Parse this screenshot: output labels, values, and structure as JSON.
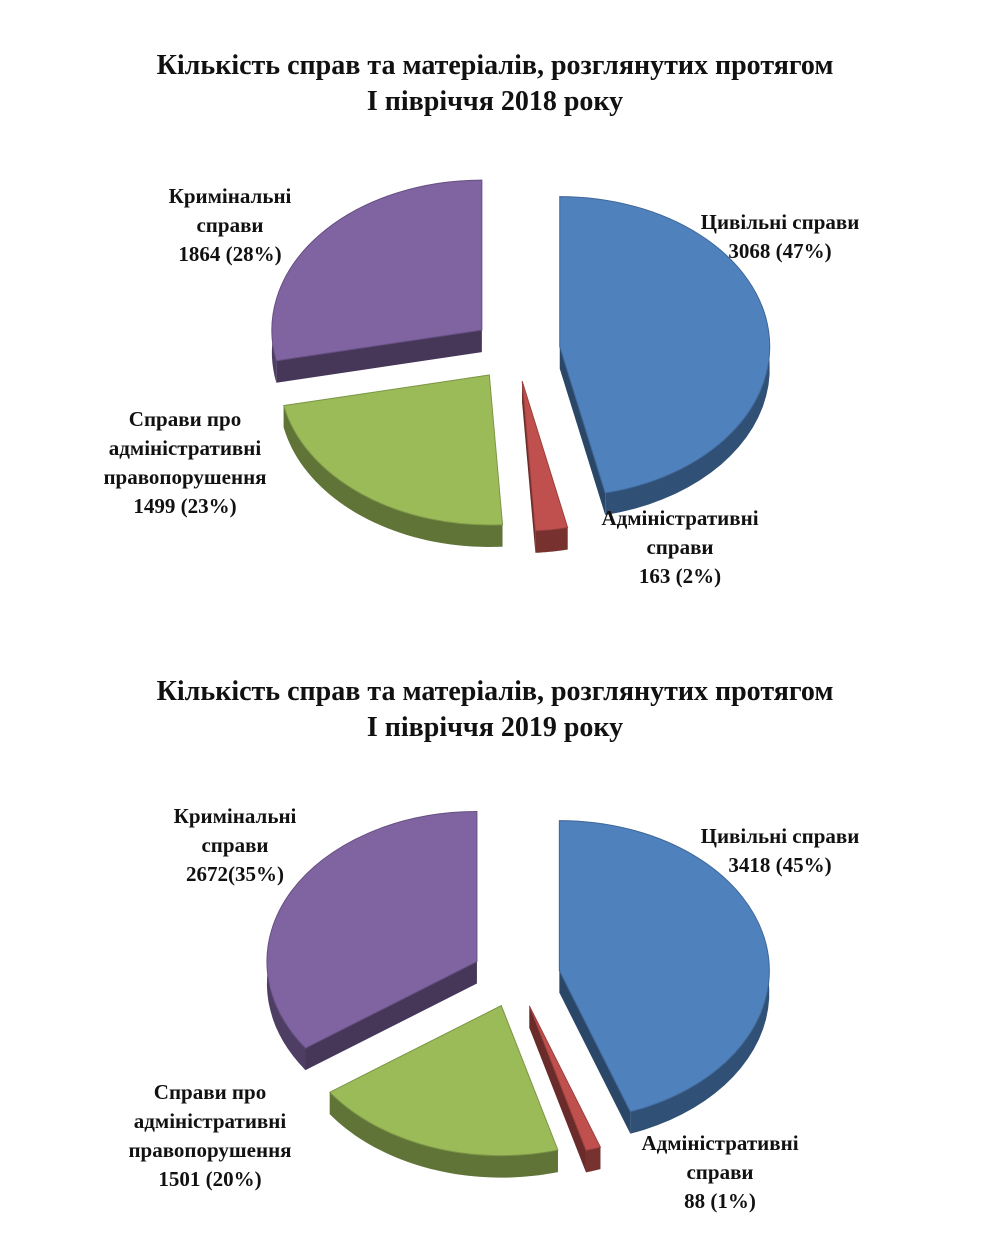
{
  "colors": {
    "civil": "#4f81bd",
    "admin": "#c0504d",
    "offense": "#9bbb59",
    "criminal": "#8064a2"
  },
  "chart_data": [
    {
      "type": "pie",
      "title": [
        "Кількість справ та матеріалів, розглянутих протягом",
        "І півріччя 2018 року"
      ],
      "slices": [
        {
          "key": "civil",
          "label_lines": [
            "Цивільні справи"
          ],
          "value": 3068,
          "value_text": "3068 (47%)"
        },
        {
          "key": "admin",
          "label_lines": [
            "Адміністративні",
            "справи"
          ],
          "value": 163,
          "value_text": "163 (2%)"
        },
        {
          "key": "offense",
          "label_lines": [
            "Справи про",
            "адміністративні",
            "правопорушення"
          ],
          "value": 1499,
          "value_text": "1499 (23%)"
        },
        {
          "key": "criminal",
          "label_lines": [
            "Кримінальні",
            "справи"
          ],
          "value": 1864,
          "value_text": "1864 (28%)"
        }
      ]
    },
    {
      "type": "pie",
      "title": [
        "Кількість справ та матеріалів, розглянутих протягом",
        "І півріччя 2019 року"
      ],
      "slices": [
        {
          "key": "civil",
          "label_lines": [
            "Цивільні справи"
          ],
          "value": 3418,
          "value_text": "3418 (45%)"
        },
        {
          "key": "admin",
          "label_lines": [
            "Адміністративні",
            "справи"
          ],
          "value": 88,
          "value_text": "88 (1%)"
        },
        {
          "key": "offense",
          "label_lines": [
            "Справи про",
            "адміністративні",
            "правопорушення"
          ],
          "value": 1501,
          "value_text": "1501 (20%)"
        },
        {
          "key": "criminal",
          "label_lines": [
            "Кримінальні",
            "справи"
          ],
          "value": 2672,
          "value_text": "2672(35%)"
        }
      ]
    }
  ]
}
